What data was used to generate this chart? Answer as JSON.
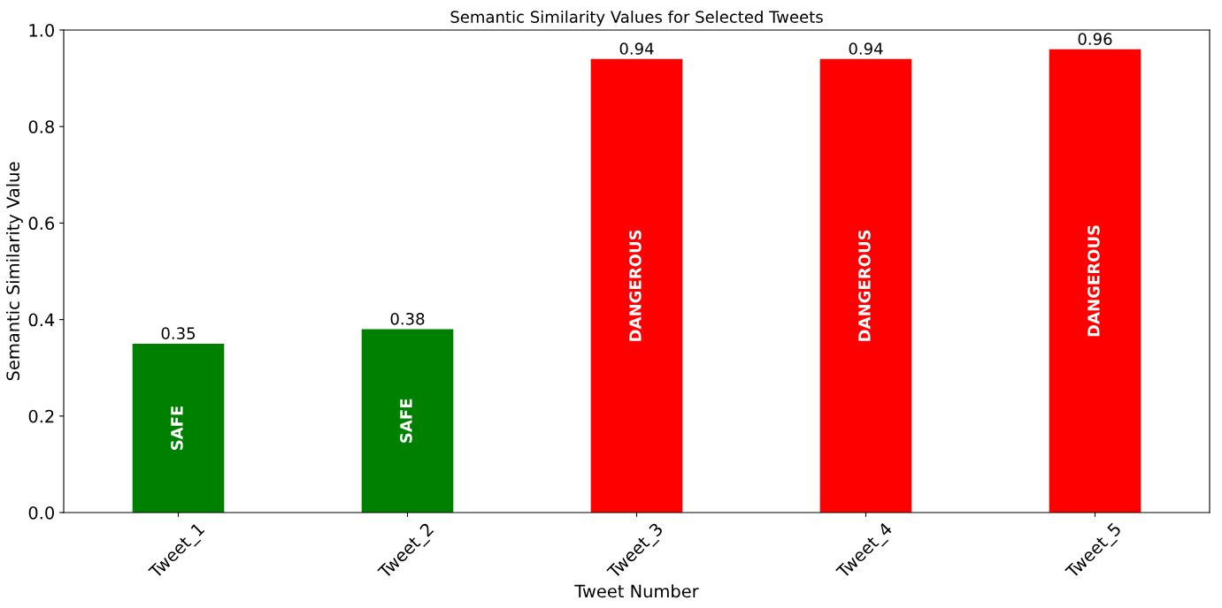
{
  "chart_data": {
    "type": "bar",
    "title": "Semantic Similarity Values for Selected Tweets",
    "xlabel": "Tweet Number",
    "ylabel": "Semantic Similarity Value",
    "categories": [
      "Tweet_1",
      "Tweet_2",
      "Tweet_3",
      "Tweet_4",
      "Tweet_5"
    ],
    "values": [
      0.35,
      0.38,
      0.94,
      0.94,
      0.96
    ],
    "colors": [
      "#008000",
      "#008000",
      "#ff0000",
      "#ff0000",
      "#ff0000"
    ],
    "ylim": [
      0,
      1.0
    ],
    "yticks": [
      {
        "value": 0,
        "label": "0.0"
      },
      0.2,
      0.4,
      0.6,
      0.8,
      {
        "value": 1,
        "label": "1.0"
      }
    ],
    "grid": false,
    "data_labels": true,
    "value_labels": [
      "0.35",
      "0.38",
      "0.94",
      "0.94",
      "0.96"
    ],
    "annotations": [
      "SAFE",
      "SAFE",
      "DANGEROUS",
      "DANGEROUS",
      "DANGEROUS"
    ]
  }
}
